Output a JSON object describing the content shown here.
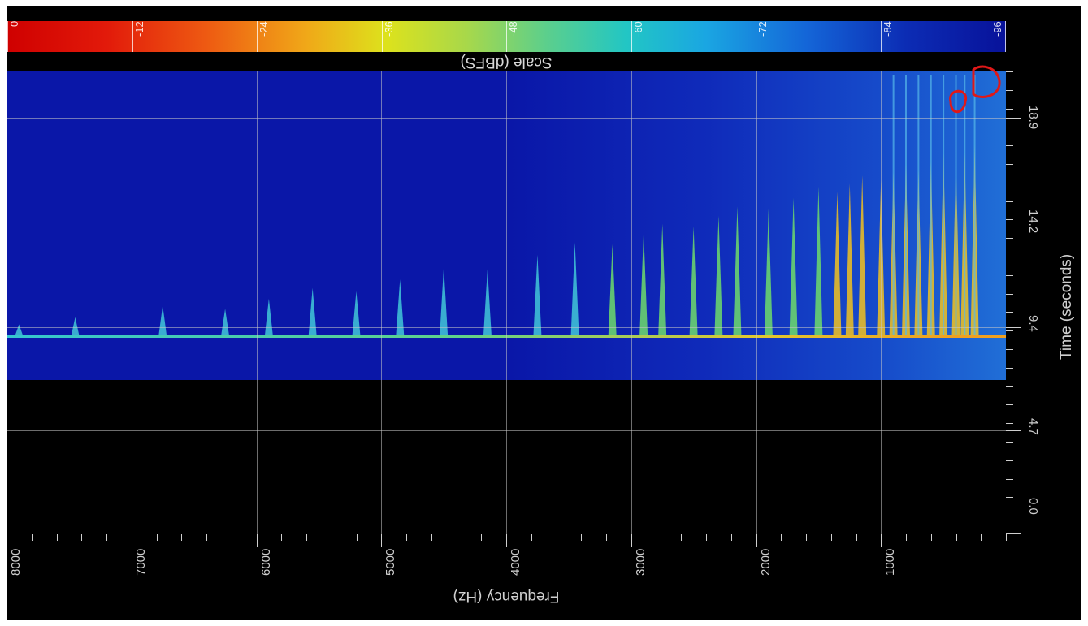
{
  "chart_data": {
    "type": "heatmap",
    "title": "",
    "colorbar": {
      "label": "Scale (dBFS)",
      "ticks": [
        "0",
        "-12",
        "-24",
        "-36",
        "-48",
        "-60",
        "-72",
        "-84",
        "-96"
      ],
      "range": [
        0,
        -96
      ],
      "colors": [
        "#cf0000",
        "#ee5a12",
        "#dde21c",
        "#5ccf8c",
        "#22c6c4",
        "#1466d8",
        "#08129a"
      ]
    },
    "x_axis": {
      "label": "Frequency (Hz)",
      "range": [
        8000,
        0
      ],
      "ticks": [
        "8000",
        "7000",
        "6000",
        "5000",
        "4000",
        "3000",
        "2000",
        "1000"
      ]
    },
    "y_axis": {
      "label": "Time (seconds)",
      "range": [
        0.0,
        21.0
      ],
      "ticks": [
        "0.0",
        "4.7",
        "9.4",
        "14.2",
        "18.9"
      ]
    },
    "signal_start_time": 7.0,
    "impulse_time": 9.0,
    "harmonic_peaks_hz": [
      7900,
      7450,
      6750,
      6250,
      5900,
      5550,
      5200,
      4850,
      4500,
      4150,
      3750,
      3450,
      3150,
      2900,
      2750,
      2500,
      2300,
      2150,
      1900,
      1700,
      1500,
      1350,
      1250,
      1150,
      1000,
      900,
      800,
      700,
      600,
      500,
      400,
      330,
      250
    ]
  }
}
